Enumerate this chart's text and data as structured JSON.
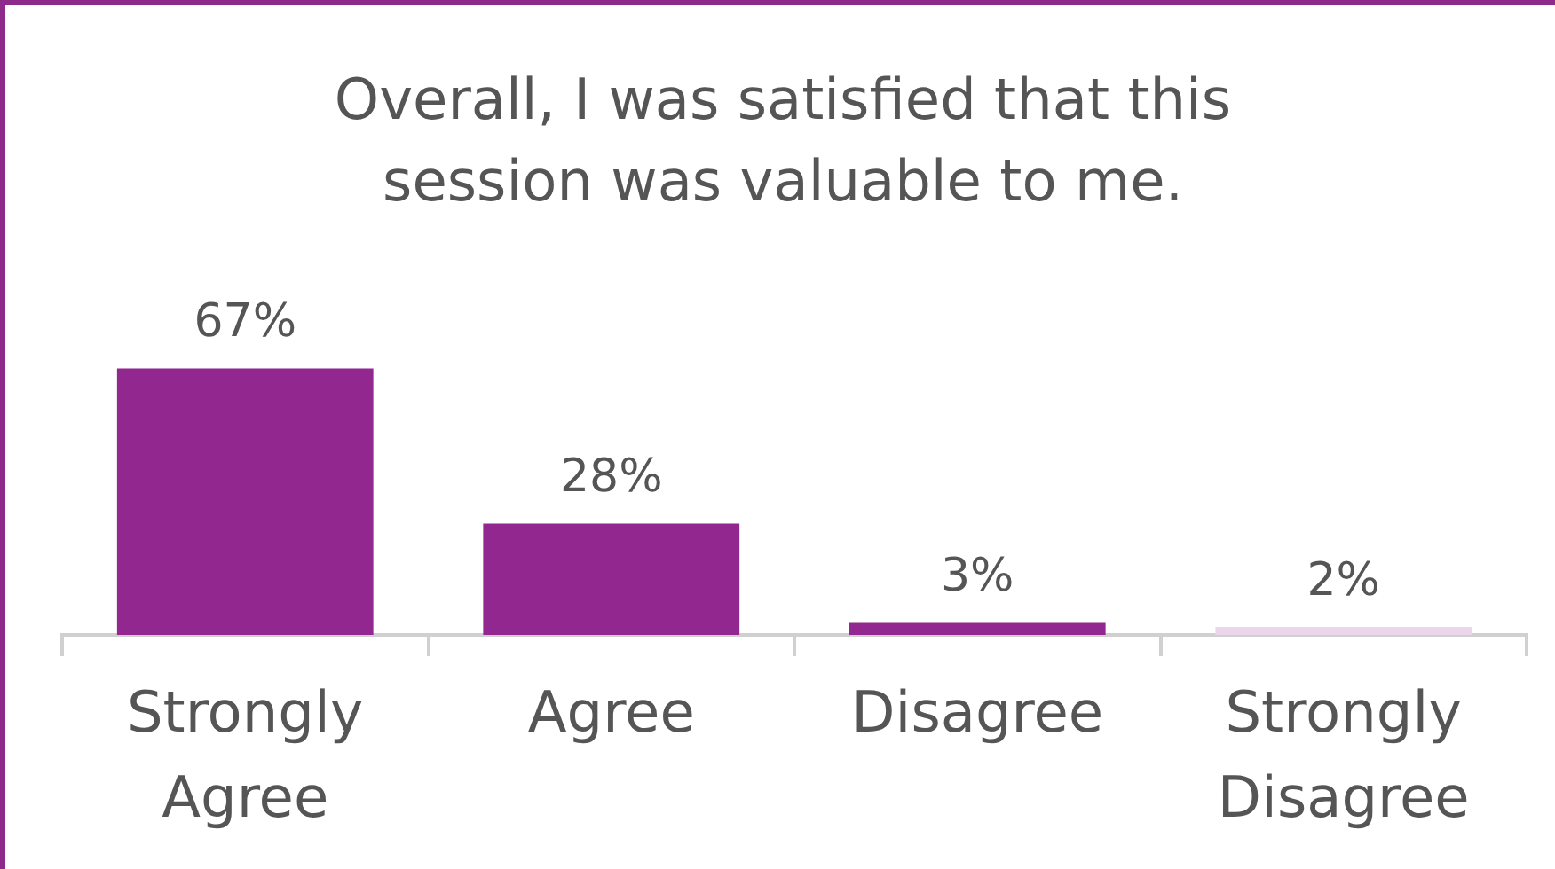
{
  "chart_data": {
    "type": "bar",
    "title": "Overall, I was satisfied that this session was valuable to me.",
    "categories": [
      "Strongly Agree",
      "Agree",
      "Disagree",
      "Strongly Disagree"
    ],
    "values": [
      67,
      28,
      3,
      2
    ],
    "colors": [
      "#92278f",
      "#92278f",
      "#92278f",
      "#ecd6ec"
    ],
    "value_labels": [
      "67%",
      "28%",
      "3%",
      "2%"
    ],
    "grid": false,
    "legend": false
  }
}
